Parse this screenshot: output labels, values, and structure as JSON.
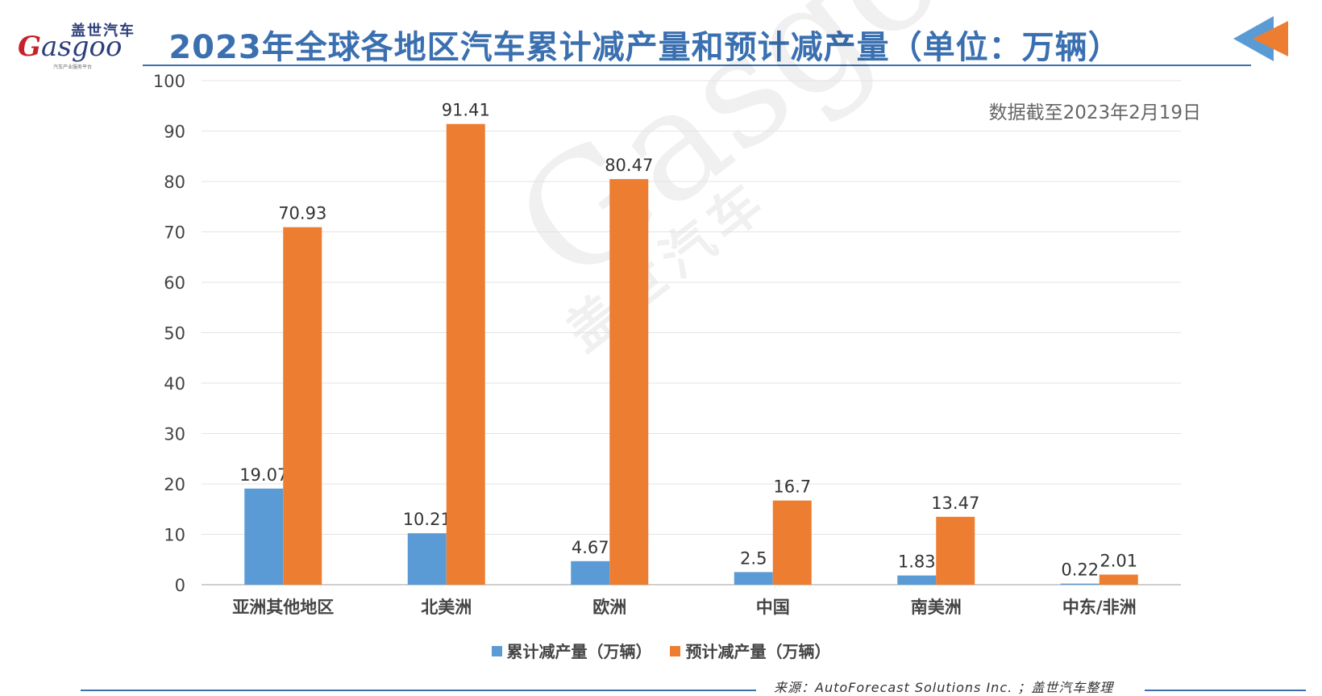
{
  "header": {
    "logo_cn": "盖世汽车",
    "logo_main_g": "G",
    "logo_main_rest": "asgoo",
    "logo_sub": "汽车产业服务平台",
    "title": "2023年全球各地区汽车累计减产量和预计减产量（单位：万辆）",
    "note": "数据截至2023年2月19日"
  },
  "footer": {
    "source": "来源：AutoForecast Solutions Inc. ；盖世汽车整理"
  },
  "colors": {
    "accent": "#3a6fb0",
    "series1": "#5b9bd5",
    "series2": "#ed7d31",
    "corner_blue": "#5b9bd5",
    "corner_orange": "#ed7d31"
  },
  "chart_data": {
    "type": "bar",
    "categories": [
      "亚洲其他地区",
      "北美洲",
      "欧洲",
      "中国",
      "南美洲",
      "中东/非洲"
    ],
    "series": [
      {
        "name": "累计减产量（万辆）",
        "values": [
          19.07,
          10.21,
          4.67,
          2.5,
          1.83,
          0.22
        ],
        "labels": [
          "19.07",
          "10.21",
          "4.67",
          "2.5",
          "1.83",
          "0.22"
        ]
      },
      {
        "name": "预计减产量（万辆）",
        "values": [
          70.93,
          91.41,
          80.47,
          16.7,
          13.47,
          2.01
        ],
        "labels": [
          "70.93",
          "91.41",
          "80.47",
          "16.7",
          "13.47",
          "2.01"
        ]
      }
    ],
    "ylim": [
      0,
      100
    ],
    "yticks": [
      0,
      10,
      20,
      30,
      40,
      50,
      60,
      70,
      80,
      90,
      100
    ],
    "grid": true,
    "legend_position": "bottom"
  }
}
